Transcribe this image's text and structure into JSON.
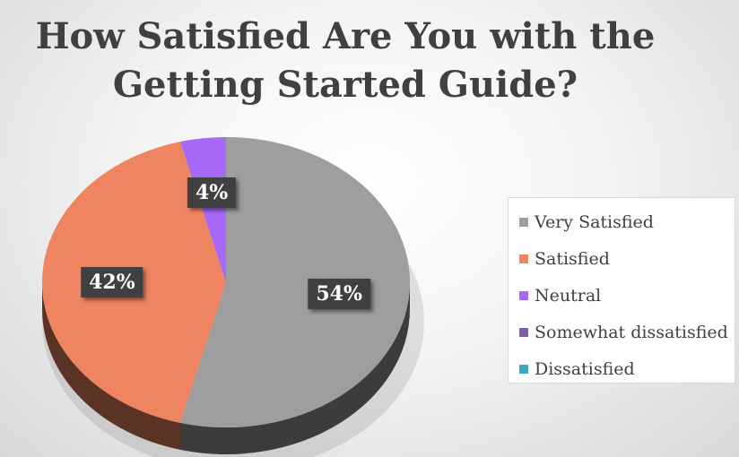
{
  "chart_data": {
    "type": "pie",
    "title_lines": [
      "How Satisfied Are You with the",
      "Getting Started Guide?"
    ],
    "slices": [
      {
        "label": "Very Satisfied",
        "value": 54,
        "display": "54%",
        "color": "#9e9ea1"
      },
      {
        "label": "Satisfied",
        "value": 42,
        "display": "42%",
        "color": "#ef8560"
      },
      {
        "label": "Neutral",
        "value": 4,
        "display": "4%",
        "color": "#a668f7"
      },
      {
        "label": "Somewhat dissatisfied",
        "value": 0,
        "display": "",
        "color": "#7f5fa6"
      },
      {
        "label": "Dissatisfied",
        "value": 0,
        "display": "",
        "color": "#3ea9c4"
      }
    ],
    "legend_position": "right",
    "style": "3d"
  }
}
